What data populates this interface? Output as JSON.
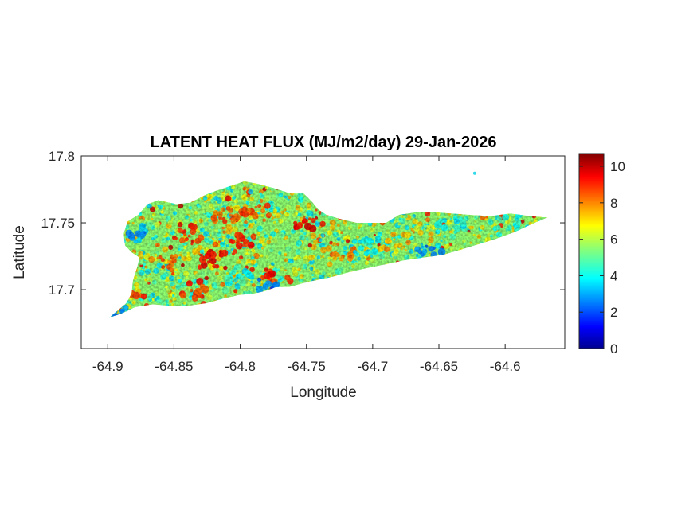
{
  "chart_data": {
    "type": "heatmap",
    "title": "LATENT HEAT FLUX (MJ/m2/day) 29-Jan-2026",
    "xlabel": "Longitude",
    "ylabel": "Latitude",
    "xlim": [
      -64.92,
      -64.555
    ],
    "ylim": [
      17.656,
      17.8
    ],
    "x_ticks": [
      -64.9,
      -64.85,
      -64.8,
      -64.75,
      -64.7,
      -64.65,
      -64.6
    ],
    "x_tick_labels": [
      "-64.9",
      "-64.85",
      "-64.8",
      "-64.75",
      "-64.7",
      "-64.65",
      "-64.6"
    ],
    "y_ticks": [
      17.7,
      17.75,
      17.8
    ],
    "y_tick_labels": [
      "17.7",
      "17.75",
      "17.8"
    ],
    "colorbar": {
      "colormap": "jet",
      "range": [
        0,
        10.7
      ],
      "ticks": [
        0,
        2,
        4,
        6,
        8,
        10
      ],
      "tick_labels": [
        "0",
        "2",
        "4",
        "6",
        "8",
        "10"
      ]
    },
    "island_outline_lonlat": [
      [
        -64.899,
        17.679
      ],
      [
        -64.893,
        17.684
      ],
      [
        -64.886,
        17.69
      ],
      [
        -64.882,
        17.697
      ],
      [
        -64.881,
        17.707
      ],
      [
        -64.878,
        17.716
      ],
      [
        -64.876,
        17.724
      ],
      [
        -64.882,
        17.728
      ],
      [
        -64.887,
        17.733
      ],
      [
        -64.888,
        17.742
      ],
      [
        -64.885,
        17.751
      ],
      [
        -64.877,
        17.756
      ],
      [
        -64.87,
        17.764
      ],
      [
        -64.862,
        17.767
      ],
      [
        -64.848,
        17.764
      ],
      [
        -64.838,
        17.765
      ],
      [
        -64.824,
        17.772
      ],
      [
        -64.812,
        17.776
      ],
      [
        -64.797,
        17.781
      ],
      [
        -64.786,
        17.779
      ],
      [
        -64.775,
        17.776
      ],
      [
        -64.762,
        17.772
      ],
      [
        -64.752,
        17.772
      ],
      [
        -64.746,
        17.766
      ],
      [
        -64.741,
        17.76
      ],
      [
        -64.735,
        17.756
      ],
      [
        -64.725,
        17.753
      ],
      [
        -64.712,
        17.75
      ],
      [
        -64.7,
        17.75
      ],
      [
        -64.69,
        17.75
      ],
      [
        -64.68,
        17.756
      ],
      [
        -64.667,
        17.758
      ],
      [
        -64.654,
        17.758
      ],
      [
        -64.641,
        17.757
      ],
      [
        -64.627,
        17.756
      ],
      [
        -64.612,
        17.755
      ],
      [
        -64.596,
        17.757
      ],
      [
        -64.581,
        17.755
      ],
      [
        -64.568,
        17.754
      ],
      [
        -64.58,
        17.749
      ],
      [
        -64.593,
        17.743
      ],
      [
        -64.607,
        17.738
      ],
      [
        -64.62,
        17.734
      ],
      [
        -64.633,
        17.73
      ],
      [
        -64.647,
        17.726
      ],
      [
        -64.662,
        17.724
      ],
      [
        -64.676,
        17.722
      ],
      [
        -64.69,
        17.719
      ],
      [
        -64.705,
        17.716
      ],
      [
        -64.718,
        17.713
      ],
      [
        -64.733,
        17.709
      ],
      [
        -64.748,
        17.706
      ],
      [
        -64.763,
        17.702
      ],
      [
        -64.773,
        17.702
      ],
      [
        -64.781,
        17.699
      ],
      [
        -64.79,
        17.697
      ],
      [
        -64.801,
        17.696
      ],
      [
        -64.814,
        17.693
      ],
      [
        -64.825,
        17.69
      ],
      [
        -64.839,
        17.688
      ],
      [
        -64.854,
        17.688
      ],
      [
        -64.866,
        17.689
      ],
      [
        -64.879,
        17.687
      ],
      [
        -64.89,
        17.682
      ],
      [
        -64.899,
        17.679
      ]
    ],
    "islet_lonlat": [
      -64.623,
      17.787
    ],
    "hotspots": [
      {
        "lon": -64.822,
        "lat": 17.722,
        "value": 9.5
      },
      {
        "lon": -64.8,
        "lat": 17.735,
        "value": 9.0
      },
      {
        "lon": -64.84,
        "lat": 17.742,
        "value": 8.8
      },
      {
        "lon": -64.748,
        "lat": 17.748,
        "value": 9.3
      },
      {
        "lon": -64.788,
        "lat": 17.76,
        "value": 8.5
      },
      {
        "lon": -64.86,
        "lat": 17.72,
        "value": 8.2
      },
      {
        "lon": -64.772,
        "lat": 17.712,
        "value": 9.0
      },
      {
        "lon": -64.722,
        "lat": 17.728,
        "value": 8.0
      },
      {
        "lon": -64.684,
        "lat": 17.735,
        "value": 7.5
      },
      {
        "lon": -64.88,
        "lat": 17.7,
        "value": 8.6
      },
      {
        "lon": -64.835,
        "lat": 17.7,
        "value": 8.8
      },
      {
        "lon": -64.812,
        "lat": 17.755,
        "value": 8.4
      }
    ],
    "coldspots": [
      {
        "lon": -64.879,
        "lat": 17.742,
        "value": 3.2
      },
      {
        "lon": -64.775,
        "lat": 17.703,
        "value": 2.5
      },
      {
        "lon": -64.659,
        "lat": 17.726,
        "value": 2.8
      },
      {
        "lon": -64.705,
        "lat": 17.733,
        "value": 4.3
      },
      {
        "lon": -64.64,
        "lat": 17.748,
        "value": 4.2
      },
      {
        "lon": -64.6,
        "lat": 17.75,
        "value": 4.5
      },
      {
        "lon": -64.895,
        "lat": 17.682,
        "value": 3.0
      },
      {
        "lon": -64.8,
        "lat": 17.706,
        "value": 4.4
      }
    ],
    "typical_value_range": [
      3.5,
      7.5
    ]
  }
}
